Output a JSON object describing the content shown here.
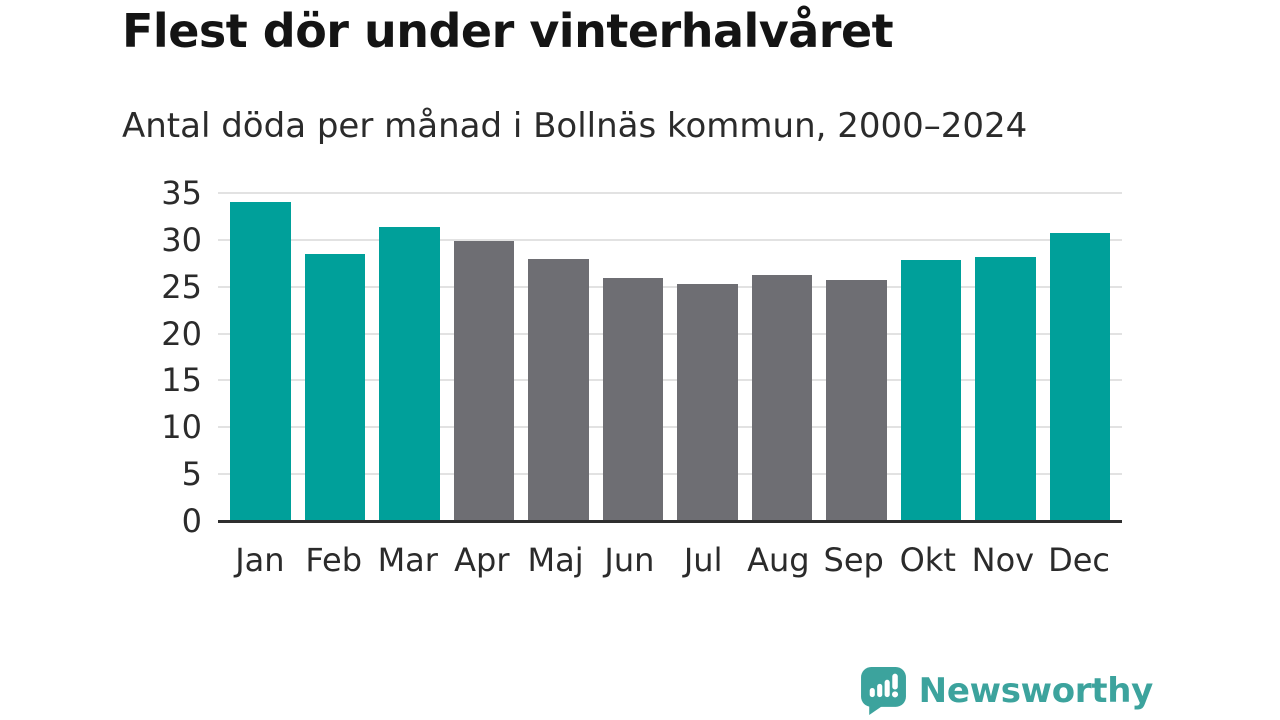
{
  "header": {
    "title": "Flest dör under vinterhalvåret",
    "subtitle": "Antal döda per månad i Bollnäs kommun, 2000–2024"
  },
  "chart_data": {
    "type": "bar",
    "title": "Flest dör under vinterhalvåret",
    "subtitle": "Antal döda per månad i Bollnäs kommun, 2000–2024",
    "categories": [
      "Jan",
      "Feb",
      "Mar",
      "Apr",
      "Maj",
      "Jun",
      "Jul",
      "Aug",
      "Sep",
      "Okt",
      "Nov",
      "Dec"
    ],
    "values": [
      34.0,
      28.5,
      31.4,
      29.9,
      28.0,
      25.9,
      25.3,
      26.2,
      25.7,
      27.8,
      28.2,
      30.7
    ],
    "bar_groups": [
      "winter",
      "winter",
      "winter",
      "summer",
      "summer",
      "summer",
      "summer",
      "summer",
      "summer",
      "winter",
      "winter",
      "winter"
    ],
    "palette": {
      "winter": "#00a09a",
      "summer": "#6e6e73"
    },
    "xlabel": "",
    "ylabel": "",
    "ylim": [
      0,
      35
    ],
    "yticks": [
      0,
      5,
      10,
      15,
      20,
      25,
      30,
      35
    ],
    "grid": "horizontal",
    "legend": "none"
  },
  "footer": {
    "brand": "Newsworthy",
    "logo_icon": "newsworthy-speech-bubble-chart-icon",
    "brand_color": "#3ca39d"
  },
  "colors": {
    "accent_teal": "#00a09a",
    "neutral_gray": "#6e6e73",
    "grid_line": "#e2e2e2",
    "axis_line": "#2f2f2f",
    "title_text": "#141414",
    "body_text": "#2b2b2b"
  }
}
